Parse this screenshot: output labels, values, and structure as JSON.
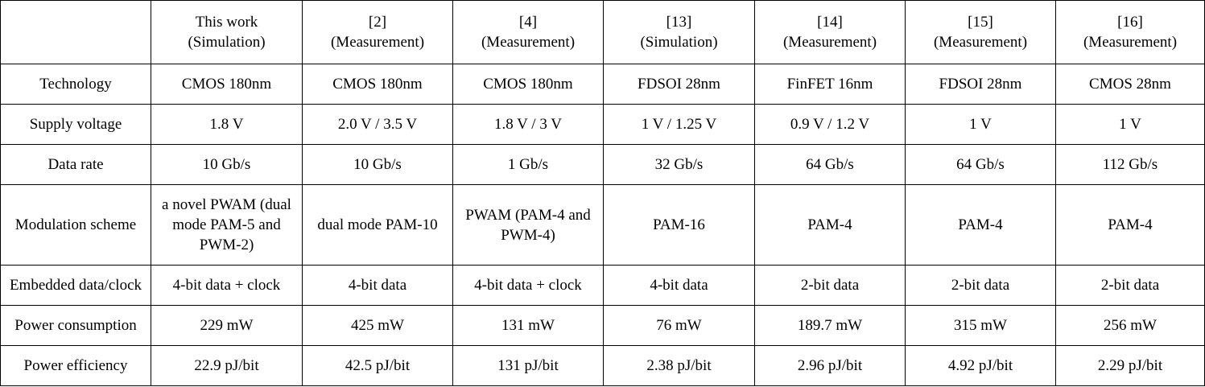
{
  "table": {
    "header": [
      [
        "This work",
        "(Simulation)"
      ],
      [
        "[2]",
        "(Measurement)"
      ],
      [
        "[4]",
        "(Measurement)"
      ],
      [
        "[13]",
        "(Simulation)"
      ],
      [
        "[14]",
        "(Measurement)"
      ],
      [
        "[15]",
        "(Measurement)"
      ],
      [
        "[16]",
        "(Measurement)"
      ]
    ],
    "rows": [
      {
        "label": "Technology",
        "cells": [
          "CMOS 180nm",
          "CMOS 180nm",
          "CMOS 180nm",
          "FDSOI 28nm",
          "FinFET 16nm",
          "FDSOI 28nm",
          "CMOS 28nm"
        ]
      },
      {
        "label": "Supply voltage",
        "cells": [
          "1.8 V",
          "2.0 V / 3.5 V",
          "1.8 V / 3 V",
          "1 V / 1.25 V",
          "0.9 V / 1.2 V",
          "1 V",
          "1 V"
        ]
      },
      {
        "label": "Data rate",
        "cells": [
          "10 Gb/s",
          "10 Gb/s",
          "1 Gb/s",
          "32 Gb/s",
          "64 Gb/s",
          "64 Gb/s",
          "112 Gb/s"
        ]
      },
      {
        "label": "Modulation scheme",
        "cells": [
          "a novel PWAM (dual mode PAM-5 and PWM-2)",
          "dual mode PAM-10",
          "PWAM (PAM-4 and PWM-4)",
          "PAM-16",
          "PAM-4",
          "PAM-4",
          "PAM-4"
        ]
      },
      {
        "label": "Embedded data/clock",
        "cells": [
          "4-bit data + clock",
          "4-bit data",
          "4-bit data + clock",
          "4-bit data",
          "2-bit data",
          "2-bit data",
          "2-bit data"
        ]
      },
      {
        "label": "Power consumption",
        "cells": [
          "229 mW",
          "425 mW",
          "131 mW",
          "76 mW",
          "189.7 mW",
          "315 mW",
          "256 mW"
        ]
      },
      {
        "label": "Power efficiency",
        "cells": [
          "22.9 pJ/bit",
          "42.5 pJ/bit",
          "131 pJ/bit",
          "2.38 pJ/bit",
          "2.96 pJ/bit",
          "4.92 pJ/bit",
          "2.29 pJ/bit"
        ]
      }
    ]
  }
}
